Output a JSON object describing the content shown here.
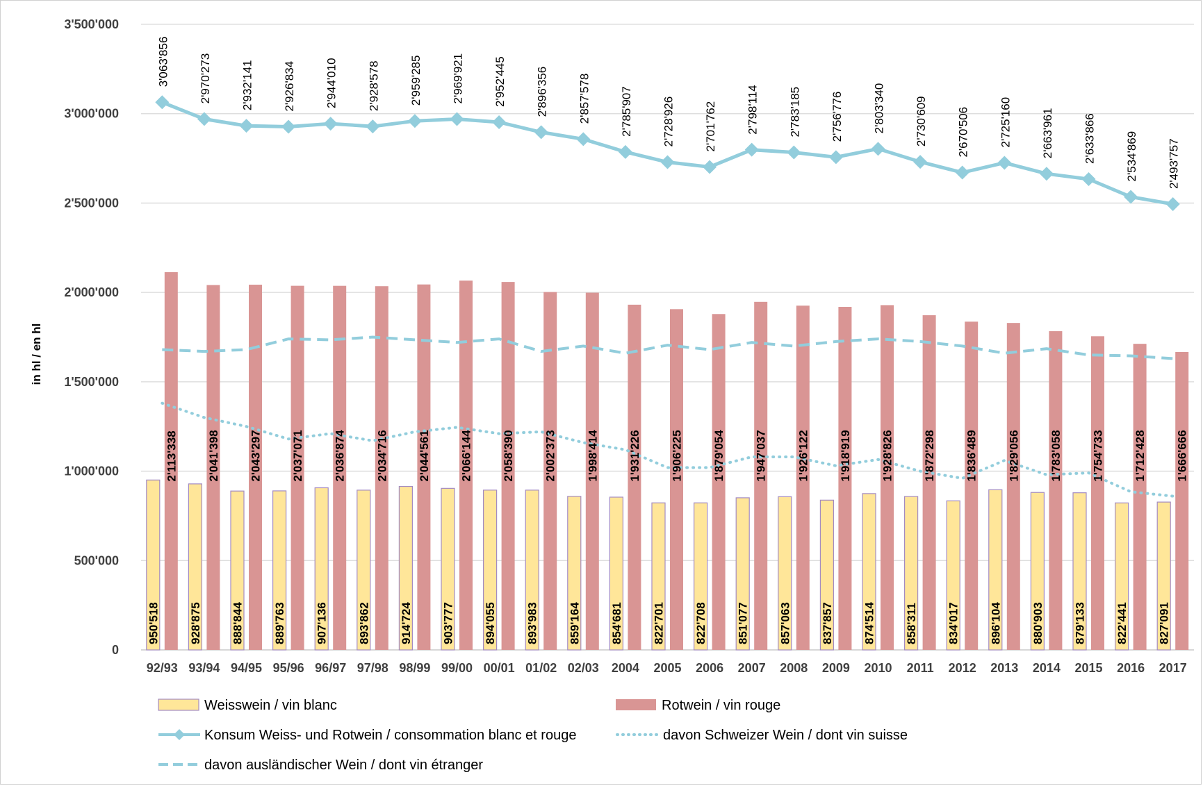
{
  "chart_data": {
    "type": "bar",
    "ylabel": "in hl / en hl",
    "ylim": [
      0,
      3500000
    ],
    "yticks": [
      0,
      500000,
      1000000,
      1500000,
      2000000,
      2500000,
      3000000,
      3500000
    ],
    "ytick_labels": [
      "0",
      "500'000",
      "1'000'000",
      "1'500'000",
      "2'000'000",
      "2'500'000",
      "3'000'000",
      "3'500'000"
    ],
    "grid": true,
    "legend_position": "bottom",
    "categories": [
      "92/93",
      "93/94",
      "94/95",
      "95/96",
      "96/97",
      "97/98",
      "98/99",
      "99/00",
      "00/01",
      "01/02",
      "02/03",
      "2004",
      "2005",
      "2006",
      "2007",
      "2008",
      "2009",
      "2010",
      "2011",
      "2012",
      "2013",
      "2014",
      "2015",
      "2016",
      "2017"
    ],
    "series": [
      {
        "name": "Weisswein / vin blanc",
        "type": "bar",
        "color": "#FFE699",
        "values": [
          950518,
          928875,
          888844,
          889763,
          907136,
          893862,
          914724,
          903777,
          894055,
          893983,
          859164,
          854681,
          822701,
          822708,
          851077,
          857063,
          837857,
          874514,
          858311,
          834017,
          896104,
          880903,
          879133,
          822441,
          827091
        ],
        "labels": [
          "950'518",
          "928'875",
          "888'844",
          "889'763",
          "907'136",
          "893'862",
          "914'724",
          "903'777",
          "894'055",
          "893'983",
          "859'164",
          "854'681",
          "822'701",
          "822'708",
          "851'077",
          "857'063",
          "837'857",
          "874'514",
          "858'311",
          "834'017",
          "896'104",
          "880'903",
          "879'133",
          "822'441",
          "827'091"
        ]
      },
      {
        "name": "Rotwein / vin rouge",
        "type": "bar",
        "color": "#D99594",
        "values": [
          2113338,
          2041398,
          2043297,
          2037071,
          2036874,
          2034716,
          2044561,
          2066144,
          2058390,
          2002373,
          1998414,
          1931226,
          1906225,
          1879054,
          1947037,
          1926122,
          1918919,
          1928826,
          1872298,
          1836489,
          1829056,
          1783058,
          1754733,
          1712428,
          1666666
        ],
        "labels": [
          "2'113'338",
          "2'041'398",
          "2'043'297",
          "2'037'071",
          "2'036'874",
          "2'034'716",
          "2'044'561",
          "2'066'144",
          "2'058'390",
          "2'002'373",
          "1'998'414",
          "1'931'226",
          "1'906'225",
          "1'879'054",
          "1'947'037",
          "1'926'122",
          "1'918'919",
          "1'928'826",
          "1'872'298",
          "1'836'489",
          "1'829'056",
          "1'783'058",
          "1'754'733",
          "1'712'428",
          "1'666'666"
        ]
      },
      {
        "name": "Konsum Weiss- und Rotwein / consommation blanc et rouge",
        "type": "line",
        "color": "#92CDDC",
        "values": [
          3063856,
          2970273,
          2932141,
          2926834,
          2944010,
          2928578,
          2959285,
          2969921,
          2952445,
          2896356,
          2857578,
          2785907,
          2728926,
          2701762,
          2798114,
          2783185,
          2756776,
          2803340,
          2730609,
          2670506,
          2725160,
          2663961,
          2633866,
          2534869,
          2493757
        ],
        "labels": [
          "3'063'856",
          "2'970'273",
          "2'932'141",
          "2'926'834",
          "2'944'010",
          "2'928'578",
          "2'959'285",
          "2'969'921",
          "2'952'445",
          "2'896'356",
          "2'857'578",
          "2'785'907",
          "2'728'926",
          "2'701'762",
          "2'798'114",
          "2'783'185",
          "2'756'776",
          "2'803'340",
          "2'730'609",
          "2'670'506",
          "2'725'160",
          "2'663'961",
          "2'633'866",
          "2'534'869",
          "2'493'757"
        ]
      },
      {
        "name": "davon Schweizer Wein / dont vin suisse",
        "type": "line",
        "color": "#92CDDC",
        "values": [
          1380000,
          1300000,
          1250000,
          1180000,
          1210000,
          1170000,
          1220000,
          1245000,
          1210000,
          1220000,
          1160000,
          1120000,
          1020000,
          1020000,
          1080000,
          1080000,
          1030000,
          1065000,
          1000000,
          960000,
          1060000,
          980000,
          990000,
          885000,
          860000
        ]
      },
      {
        "name": "davon ausländischer Wein / dont vin étranger",
        "type": "line",
        "color": "#92CDDC",
        "values": [
          1680000,
          1670000,
          1680000,
          1740000,
          1735000,
          1750000,
          1735000,
          1720000,
          1740000,
          1670000,
          1700000,
          1660000,
          1705000,
          1680000,
          1720000,
          1700000,
          1725000,
          1740000,
          1725000,
          1700000,
          1660000,
          1685000,
          1650000,
          1645000,
          1630000
        ]
      }
    ]
  }
}
